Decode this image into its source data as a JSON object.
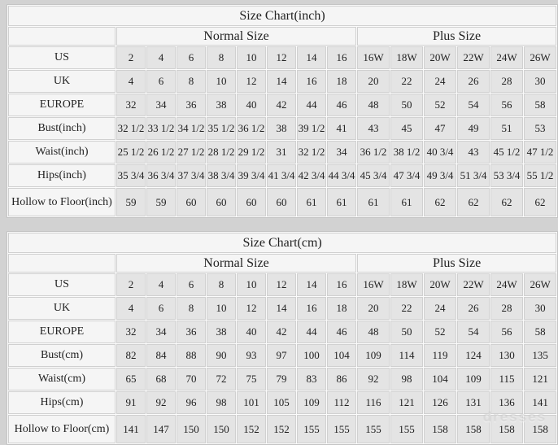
{
  "watermark": "dresses",
  "colors": {
    "page_background": "#d2d2d2",
    "header_cell_background": "#f5f5f5",
    "data_cell_background": "#e4e4e4",
    "grid_border": "#d0d0d0",
    "text": "#222222"
  },
  "chart_data": [
    {
      "type": "table",
      "title": "Size Chart(inch)",
      "column_groups": [
        {
          "label": "Normal Size",
          "span": 8
        },
        {
          "label": "Plus Size",
          "span": 6
        }
      ],
      "rows": [
        {
          "label": "US",
          "normal": [
            "2",
            "4",
            "6",
            "8",
            "10",
            "12",
            "14",
            "16"
          ],
          "plus": [
            "16W",
            "18W",
            "20W",
            "22W",
            "24W",
            "26W"
          ]
        },
        {
          "label": "UK",
          "normal": [
            "4",
            "6",
            "8",
            "10",
            "12",
            "14",
            "16",
            "18"
          ],
          "plus": [
            "20",
            "22",
            "24",
            "26",
            "28",
            "30"
          ]
        },
        {
          "label": "EUROPE",
          "normal": [
            "32",
            "34",
            "36",
            "38",
            "40",
            "42",
            "44",
            "46"
          ],
          "plus": [
            "48",
            "50",
            "52",
            "54",
            "56",
            "58"
          ]
        },
        {
          "label": "Bust(inch)",
          "normal": [
            "32 1/2",
            "33 1/2",
            "34 1/2",
            "35 1/2",
            "36 1/2",
            "38",
            "39 1/2",
            "41"
          ],
          "plus": [
            "43",
            "45",
            "47",
            "49",
            "51",
            "53"
          ]
        },
        {
          "label": "Waist(inch)",
          "normal": [
            "25 1/2",
            "26 1/2",
            "27 1/2",
            "28 1/2",
            "29 1/2",
            "31",
            "32 1/2",
            "34"
          ],
          "plus": [
            "36 1/2",
            "38 1/2",
            "40 3/4",
            "43",
            "45 1/2",
            "47 1/2"
          ]
        },
        {
          "label": "Hips(inch)",
          "normal": [
            "35 3/4",
            "36 3/4",
            "37 3/4",
            "38 3/4",
            "39 3/4",
            "41 3/4",
            "42 3/4",
            "44 3/4"
          ],
          "plus": [
            "45 3/4",
            "47 3/4",
            "49 3/4",
            "51 3/4",
            "53 3/4",
            "55 1/2"
          ]
        },
        {
          "label": "Hollow to Floor(inch)",
          "normal": [
            "59",
            "59",
            "60",
            "60",
            "60",
            "60",
            "61",
            "61"
          ],
          "plus": [
            "61",
            "61",
            "62",
            "62",
            "62",
            "62"
          ]
        }
      ]
    },
    {
      "type": "table",
      "title": "Size Chart(cm)",
      "column_groups": [
        {
          "label": "Normal Size",
          "span": 8
        },
        {
          "label": "Plus Size",
          "span": 6
        }
      ],
      "rows": [
        {
          "label": "US",
          "normal": [
            "2",
            "4",
            "6",
            "8",
            "10",
            "12",
            "14",
            "16"
          ],
          "plus": [
            "16W",
            "18W",
            "20W",
            "22W",
            "24W",
            "26W"
          ]
        },
        {
          "label": "UK",
          "normal": [
            "4",
            "6",
            "8",
            "10",
            "12",
            "14",
            "16",
            "18"
          ],
          "plus": [
            "20",
            "22",
            "24",
            "26",
            "28",
            "30"
          ]
        },
        {
          "label": "EUROPE",
          "normal": [
            "32",
            "34",
            "36",
            "38",
            "40",
            "42",
            "44",
            "46"
          ],
          "plus": [
            "48",
            "50",
            "52",
            "54",
            "56",
            "58"
          ]
        },
        {
          "label": "Bust(cm)",
          "normal": [
            "82",
            "84",
            "88",
            "90",
            "93",
            "97",
            "100",
            "104"
          ],
          "plus": [
            "109",
            "114",
            "119",
            "124",
            "130",
            "135"
          ]
        },
        {
          "label": "Waist(cm)",
          "normal": [
            "65",
            "68",
            "70",
            "72",
            "75",
            "79",
            "83",
            "86"
          ],
          "plus": [
            "92",
            "98",
            "104",
            "109",
            "115",
            "121"
          ]
        },
        {
          "label": "Hips(cm)",
          "normal": [
            "91",
            "92",
            "96",
            "98",
            "101",
            "105",
            "109",
            "112"
          ],
          "plus": [
            "116",
            "121",
            "126",
            "131",
            "136",
            "141"
          ]
        },
        {
          "label": "Hollow to Floor(cm)",
          "normal": [
            "141",
            "147",
            "150",
            "150",
            "152",
            "152",
            "155",
            "155"
          ],
          "plus": [
            "155",
            "155",
            "158",
            "158",
            "158",
            "158"
          ]
        }
      ]
    }
  ]
}
